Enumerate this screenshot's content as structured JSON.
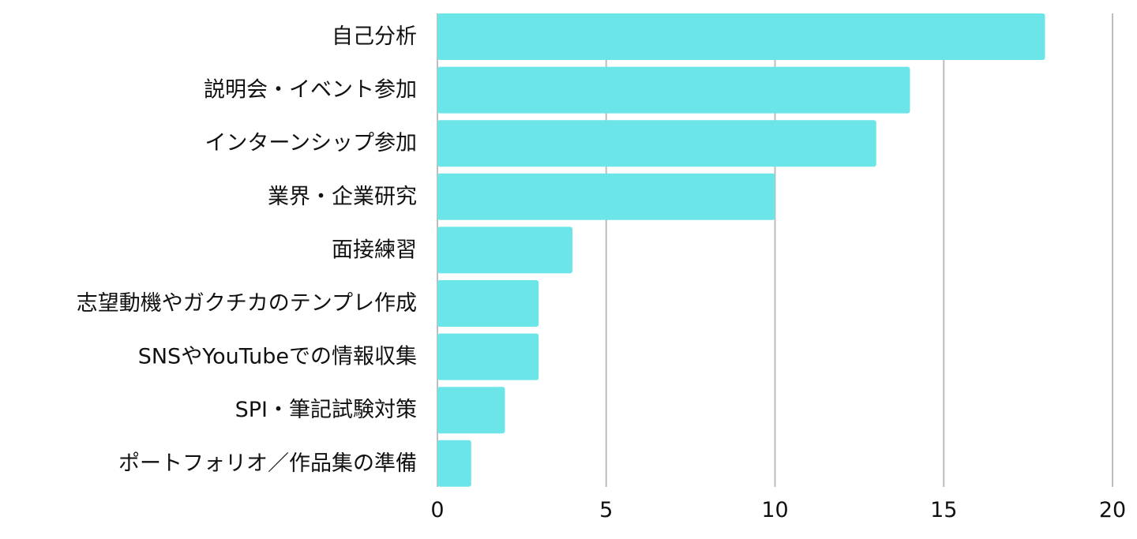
{
  "chart_data": {
    "type": "bar",
    "orientation": "horizontal",
    "categories": [
      "自己分析",
      "説明会・イベント参加",
      "インターンシップ参加",
      "業界・企業研究",
      "面接練習",
      "志望動機やガクチカのテンプレ作成",
      "SNSやYouTubeでの情報収集",
      "SPI・筆記試験対策",
      "ポートフォリオ／作品集の準備"
    ],
    "values": [
      18,
      14,
      13,
      10,
      4,
      3,
      3,
      2,
      1
    ],
    "xlim": [
      0,
      20
    ],
    "x_ticks": [
      "0",
      "5",
      "10",
      "15",
      "20"
    ],
    "grid": true,
    "bar_color": "#6ce5e8",
    "grid_color": "#bdbdbd"
  }
}
